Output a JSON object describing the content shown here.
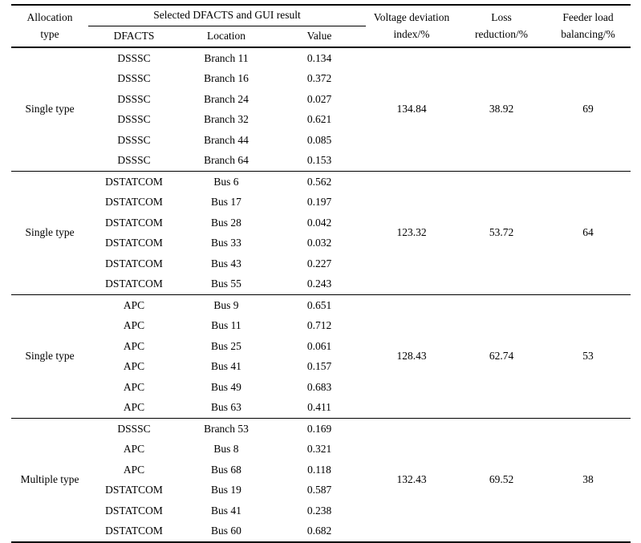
{
  "meta": {
    "background_color": "#ffffff",
    "text_color": "#000000",
    "rule_color": "#000000"
  },
  "table": {
    "header": {
      "allocation": "Allocation\ntype",
      "selected_group": "Selected DFACTS and GUI result",
      "dfacts": "DFACTS",
      "location": "Location",
      "value": "Value",
      "voltage": "Voltage deviation\nindex/%",
      "loss": "Loss\nreduction/%",
      "feeder": "Feeder load\nbalancing/%"
    },
    "groups": [
      {
        "allocation_type": "Single type",
        "rows": [
          {
            "dfacts": "DSSSC",
            "location": "Branch 11",
            "value": "0.134"
          },
          {
            "dfacts": "DSSSC",
            "location": "Branch 16",
            "value": "0.372"
          },
          {
            "dfacts": "DSSSC",
            "location": "Branch 24",
            "value": "0.027"
          },
          {
            "dfacts": "DSSSC",
            "location": "Branch 32",
            "value": "0.621"
          },
          {
            "dfacts": "DSSSC",
            "location": "Branch 44",
            "value": "0.085"
          },
          {
            "dfacts": "DSSSC",
            "location": "Branch 64",
            "value": "0.153"
          }
        ],
        "voltage_deviation_index": "134.84",
        "loss_reduction": "38.92",
        "feeder_load_balancing": "69"
      },
      {
        "allocation_type": "Single type",
        "rows": [
          {
            "dfacts": "DSTATCOM",
            "location": "Bus 6",
            "value": "0.562"
          },
          {
            "dfacts": "DSTATCOM",
            "location": "Bus 17",
            "value": "0.197"
          },
          {
            "dfacts": "DSTATCOM",
            "location": "Bus 28",
            "value": "0.042"
          },
          {
            "dfacts": "DSTATCOM",
            "location": "Bus 33",
            "value": "0.032"
          },
          {
            "dfacts": "DSTATCOM",
            "location": "Bus 43",
            "value": "0.227"
          },
          {
            "dfacts": "DSTATCOM",
            "location": "Bus 55",
            "value": "0.243"
          }
        ],
        "voltage_deviation_index": "123.32",
        "loss_reduction": "53.72",
        "feeder_load_balancing": "64"
      },
      {
        "allocation_type": "Single type",
        "rows": [
          {
            "dfacts": "APC",
            "location": "Bus 9",
            "value": "0.651"
          },
          {
            "dfacts": "APC",
            "location": "Bus 11",
            "value": "0.712"
          },
          {
            "dfacts": "APC",
            "location": "Bus 25",
            "value": "0.061"
          },
          {
            "dfacts": "APC",
            "location": "Bus 41",
            "value": "0.157"
          },
          {
            "dfacts": "APC",
            "location": "Bus 49",
            "value": "0.683"
          },
          {
            "dfacts": "APC",
            "location": "Bus 63",
            "value": "0.411"
          }
        ],
        "voltage_deviation_index": "128.43",
        "loss_reduction": "62.74",
        "feeder_load_balancing": "53"
      },
      {
        "allocation_type": "Multiple type",
        "rows": [
          {
            "dfacts": "DSSSC",
            "location": "Branch 53",
            "value": "0.169"
          },
          {
            "dfacts": "APC",
            "location": "Bus 8",
            "value": "0.321"
          },
          {
            "dfacts": "APC",
            "location": "Bus 68",
            "value": "0.118"
          },
          {
            "dfacts": "DSTATCOM",
            "location": "Bus 19",
            "value": "0.587"
          },
          {
            "dfacts": "DSTATCOM",
            "location": "Bus 41",
            "value": "0.238"
          },
          {
            "dfacts": "DSTATCOM",
            "location": "Bus 60",
            "value": "0.682"
          }
        ],
        "voltage_deviation_index": "132.43",
        "loss_reduction": "69.52",
        "feeder_load_balancing": "38"
      }
    ]
  }
}
